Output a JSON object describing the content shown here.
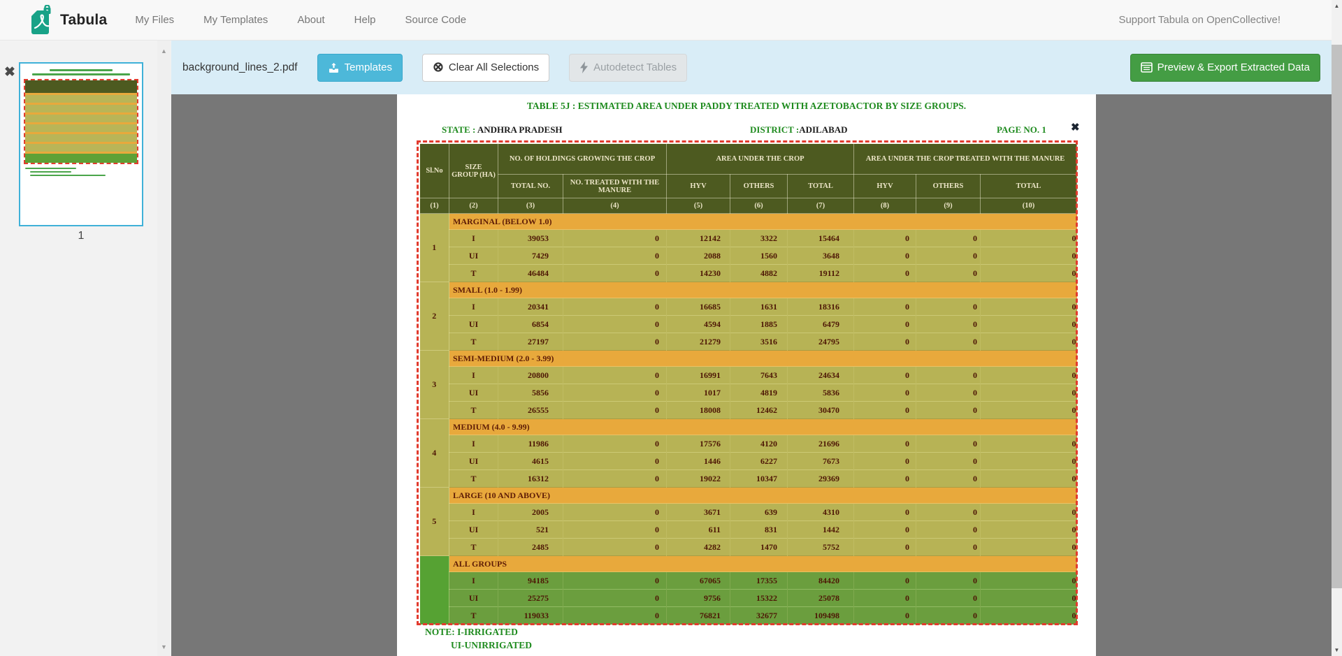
{
  "navbar": {
    "brand": "Tabula",
    "items": [
      "My Files",
      "My Templates",
      "About",
      "Help",
      "Source Code"
    ],
    "support_link": "Support Tabula on OpenCollective!"
  },
  "toolbar": {
    "filename": "background_lines_2.pdf",
    "templates_label": "Templates",
    "clear_label": "Clear All Selections",
    "autodetect_label": "Autodetect Tables",
    "export_label": "Preview & Export Extracted Data"
  },
  "sidebar": {
    "page_number": "1"
  },
  "icons": {
    "close_thick": "✖",
    "circle_x": "⊗",
    "arrow_up": "▲",
    "arrow_down": "▼"
  },
  "colors": {
    "toolbar_bg": "#d9edf7",
    "templates_button": "#4db8d9",
    "export_button": "#449d44",
    "selection_border": "#e23b2e",
    "table_header_olive": "#4d5a20",
    "band_orange": "#e8a93c",
    "row_olive": "#b7b355",
    "row_green": "#6b9e3e",
    "pdf_green_text": "#1f8b1f",
    "canvas_gray": "#777777"
  },
  "pdf": {
    "title": "TABLE 5J : ESTIMATED AREA UNDER PADDY  TREATED WITH AZETOBACTOR BY SIZE GROUPS.",
    "state_label": "STATE :",
    "state_value": "ANDHRA PRADESH",
    "district_label": "DISTRICT :",
    "district_value": "ADILABAD",
    "page_label": "PAGE NO. 1",
    "note_line1": "NOTE: I-IRRIGATED",
    "note_line2": "UI-UNIRRIGATED",
    "table": {
      "header": {
        "col1": "Sl.No",
        "col2": "SIZE GROUP (HA)",
        "groups": [
          {
            "label": "NO. OF HOLDINGS GROWING THE CROP",
            "span": 2
          },
          {
            "label": "AREA UNDER THE CROP",
            "span": 3
          },
          {
            "label": "AREA UNDER THE CROP TREATED WITH THE  MANURE",
            "span": 3
          }
        ],
        "subs": [
          "TOTAL NO.",
          "NO. TREATED WITH THE  MANURE",
          "HYV",
          "OTHERS",
          "TOTAL",
          "HYV",
          "OTHERS",
          "TOTAL"
        ],
        "nums": [
          "(1)",
          "(2)",
          "(3)",
          "(4)",
          "(5)",
          "(6)",
          "(7)",
          "(8)",
          "(9)",
          "(10)"
        ]
      },
      "sections": [
        {
          "sl_no": "1",
          "band": "MARGINAL (BELOW 1.0)",
          "highlight": false,
          "rows": [
            [
              "I",
              "39053",
              "0",
              "12142",
              "3322",
              "15464",
              "0",
              "0",
              "0"
            ],
            [
              "UI",
              "7429",
              "0",
              "2088",
              "1560",
              "3648",
              "0",
              "0",
              "0"
            ],
            [
              "T",
              "46484",
              "0",
              "14230",
              "4882",
              "19112",
              "0",
              "0",
              "0"
            ]
          ]
        },
        {
          "sl_no": "2",
          "band": "SMALL (1.0 - 1.99)",
          "highlight": false,
          "rows": [
            [
              "I",
              "20341",
              "0",
              "16685",
              "1631",
              "18316",
              "0",
              "0",
              "0"
            ],
            [
              "UI",
              "6854",
              "0",
              "4594",
              "1885",
              "6479",
              "0",
              "0",
              "0"
            ],
            [
              "T",
              "27197",
              "0",
              "21279",
              "3516",
              "24795",
              "0",
              "0",
              "0"
            ]
          ]
        },
        {
          "sl_no": "3",
          "band": "SEMI-MEDIUM (2.0 - 3.99)",
          "highlight": false,
          "rows": [
            [
              "I",
              "20800",
              "0",
              "16991",
              "7643",
              "24634",
              "0",
              "0",
              "0"
            ],
            [
              "UI",
              "5856",
              "0",
              "1017",
              "4819",
              "5836",
              "0",
              "0",
              "0"
            ],
            [
              "T",
              "26555",
              "0",
              "18008",
              "12462",
              "30470",
              "0",
              "0",
              "0"
            ]
          ]
        },
        {
          "sl_no": "4",
          "band": "MEDIUM (4.0 - 9.99)",
          "highlight": false,
          "rows": [
            [
              "I",
              "11986",
              "0",
              "17576",
              "4120",
              "21696",
              "0",
              "0",
              "0"
            ],
            [
              "UI",
              "4615",
              "0",
              "1446",
              "6227",
              "7673",
              "0",
              "0",
              "0"
            ],
            [
              "T",
              "16312",
              "0",
              "19022",
              "10347",
              "29369",
              "0",
              "0",
              "0"
            ]
          ]
        },
        {
          "sl_no": "5",
          "band": "LARGE (10 AND ABOVE)",
          "highlight": false,
          "rows": [
            [
              "I",
              "2005",
              "0",
              "3671",
              "639",
              "4310",
              "0",
              "0",
              "0"
            ],
            [
              "UI",
              "521",
              "0",
              "611",
              "831",
              "1442",
              "0",
              "0",
              "0"
            ],
            [
              "T",
              "2485",
              "0",
              "4282",
              "1470",
              "5752",
              "0",
              "0",
              "0"
            ]
          ]
        },
        {
          "sl_no": "",
          "band": "ALL GROUPS",
          "highlight": true,
          "rows": [
            [
              "I",
              "94185",
              "0",
              "67065",
              "17355",
              "84420",
              "0",
              "0",
              "0"
            ],
            [
              "UI",
              "25275",
              "0",
              "9756",
              "15322",
              "25078",
              "0",
              "0",
              "0"
            ],
            [
              "T",
              "119033",
              "0",
              "76821",
              "32677",
              "109498",
              "0",
              "0",
              "0"
            ]
          ]
        }
      ]
    }
  }
}
